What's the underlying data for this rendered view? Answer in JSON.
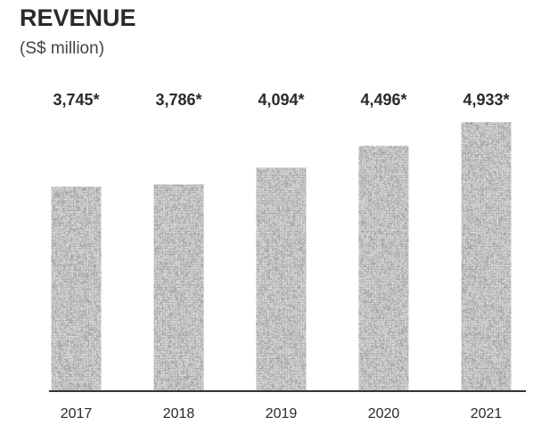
{
  "chart_data": {
    "type": "bar",
    "title": "REVENUE",
    "subtitle": "(S$ million)",
    "categories": [
      "2017",
      "2018",
      "2019",
      "2020",
      "2021"
    ],
    "values": [
      3745,
      3786,
      4094,
      4496,
      4933
    ],
    "value_labels": [
      "3,745*",
      "3,786*",
      "4,094*",
      "4,496*",
      "4,933*"
    ],
    "color": "#b8b8b8"
  }
}
